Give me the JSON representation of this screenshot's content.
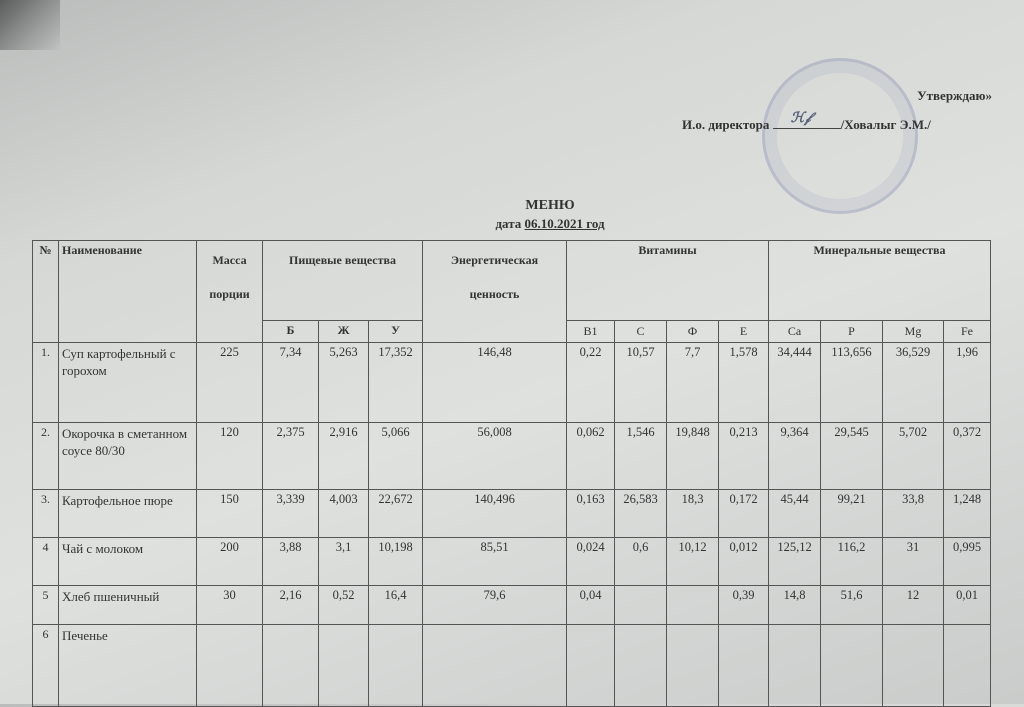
{
  "approval": {
    "approve_label": "Утверждаю»",
    "position": "И.о. директора",
    "signature": "подпись",
    "name": "/Ховалыг Э.М./"
  },
  "document": {
    "title": "МЕНЮ",
    "date_prefix": "дата",
    "date": "06.10.2021 год"
  },
  "table": {
    "headers": {
      "num": "№",
      "name": "Наименование",
      "mass": "Масса порции",
      "nutrients": "Пищевые вещества",
      "energy": "Энергетическая ценность",
      "vitamins": "Витамины",
      "minerals": "Минеральные вещества"
    },
    "subheaders": [
      "Б",
      "Ж",
      "У",
      "B1",
      "C",
      "Ф",
      "E",
      "Ca",
      "P",
      "Mg",
      "Fe"
    ],
    "rows": [
      {
        "num": "1.",
        "name": "Суп картофельный с горохом",
        "cells": [
          "225",
          "7,34",
          "5,263",
          "17,352",
          "146,48",
          "0,22",
          "10,57",
          "7,7",
          "1,578",
          "34,444",
          "113,656",
          "36,529",
          "1,96"
        ]
      },
      {
        "num": "2.",
        "name": "Окорочка в сметанном соусе  80/30",
        "cells": [
          "120",
          "2,375",
          "2,916",
          "5,066",
          "56,008",
          "0,062",
          "1,546",
          "19,848",
          "0,213",
          "9,364",
          "29,545",
          "5,702",
          "0,372"
        ]
      },
      {
        "num": "3.",
        "name": "Картофельное пюре",
        "cells": [
          "150",
          "3,339",
          "4,003",
          "22,672",
          "140,496",
          "0,163",
          "26,583",
          "18,3",
          "0,172",
          "45,44",
          "99,21",
          "33,8",
          "1,248"
        ]
      },
      {
        "num": "4",
        "name": "Чай с молоком",
        "cells": [
          "200",
          "3,88",
          "3,1",
          "10,198",
          "85,51",
          "0,024",
          "0,6",
          "10,12",
          "0,012",
          "125,12",
          "116,2",
          "31",
          "0,995"
        ]
      },
      {
        "num": "5",
        "name": "Хлеб пшеничный",
        "cells": [
          "30",
          "2,16",
          "0,52",
          "16,4",
          "79,6",
          "0,04",
          "",
          "",
          "0,39",
          "14,8",
          "51,6",
          "12",
          "0,01"
        ]
      },
      {
        "num": "6",
        "name": "Печенье",
        "cells": [
          "",
          "",
          "",
          "",
          "",
          "",
          "",
          "",
          "",
          "",
          "",
          "",
          ""
        ]
      }
    ]
  }
}
